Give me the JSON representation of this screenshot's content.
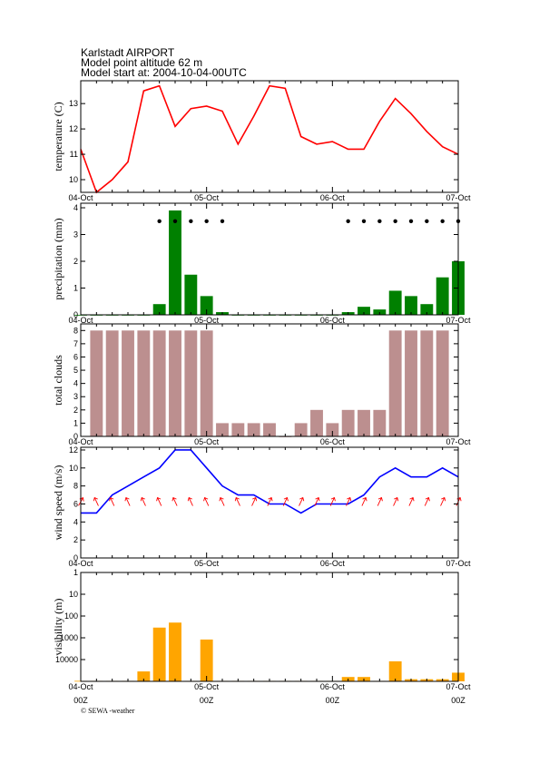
{
  "header": {
    "lines": [
      "Karlstadt AIRPORT",
      "Model point altitude  62 m",
      "Model start at: 2004-10-04-00UTC"
    ]
  },
  "chart_data": [
    {
      "type": "line",
      "ylabel": "temperature (C)",
      "categories": [
        "04-Oct",
        null,
        null,
        null,
        null,
        null,
        null,
        null,
        "05-Oct",
        null,
        null,
        null,
        null,
        null,
        null,
        null,
        "06-Oct",
        null,
        null,
        null,
        null,
        null,
        null,
        null,
        "07-Oct"
      ],
      "series": [
        {
          "color": "#ff0000",
          "values": [
            11.2,
            9.5,
            10.0,
            10.7,
            13.5,
            13.7,
            12.1,
            12.8,
            12.9,
            12.7,
            11.4,
            12.5,
            13.7,
            13.6,
            11.7,
            11.4,
            11.5,
            11.2,
            11.2,
            12.3,
            13.2,
            12.6,
            11.9,
            11.3,
            11.0
          ]
        }
      ],
      "ylim": [
        9.5,
        13.9
      ],
      "yticks": [
        10,
        11,
        12,
        13
      ]
    },
    {
      "type": "bar",
      "ylabel": "precipitation (mm)",
      "categories": [
        "04-Oct",
        null,
        null,
        null,
        null,
        null,
        null,
        null,
        "05-Oct",
        null,
        null,
        null,
        null,
        null,
        null,
        null,
        "06-Oct",
        null,
        null,
        null,
        null,
        null,
        null,
        null,
        "07-Oct"
      ],
      "series": [
        {
          "color": "#008000",
          "values": [
            0,
            0,
            0,
            0,
            0,
            0.4,
            3.9,
            1.5,
            0.7,
            0.1,
            0,
            0,
            0,
            0,
            0,
            0,
            0,
            0.1,
            0.3,
            0.2,
            0.9,
            0.7,
            0.4,
            1.4,
            2.0
          ]
        },
        {
          "type": "scatter",
          "color": "#000000",
          "values": [
            null,
            null,
            null,
            null,
            null,
            3.5,
            3.5,
            3.5,
            3.5,
            3.5,
            null,
            null,
            null,
            null,
            null,
            null,
            null,
            3.5,
            3.5,
            3.5,
            3.5,
            3.5,
            3.5,
            3.5,
            3.5
          ]
        }
      ],
      "ylim": [
        0,
        4.17
      ],
      "yticks": [
        0,
        1,
        2,
        3,
        4
      ]
    },
    {
      "type": "bar",
      "ylabel": "total clouds",
      "categories": [
        "04-Oct",
        null,
        null,
        null,
        null,
        null,
        null,
        null,
        "05-Oct",
        null,
        null,
        null,
        null,
        null,
        null,
        null,
        "06-Oct",
        null,
        null,
        null,
        null,
        null,
        null,
        null,
        "07-Oct"
      ],
      "series": [
        {
          "color": "#bc8f8f",
          "values": [
            null,
            8,
            8,
            8,
            8,
            8,
            8,
            8,
            8,
            1,
            1,
            1,
            1,
            0,
            1,
            2,
            1,
            2,
            2,
            2,
            8,
            8,
            8,
            8,
            null
          ]
        }
      ],
      "ylim": [
        0,
        8.5
      ],
      "yticks": [
        0,
        1,
        2,
        3,
        4,
        5,
        6,
        7,
        8
      ]
    },
    {
      "type": "line",
      "ylabel": "wind speed (m/s)",
      "categories": [
        "04-Oct",
        null,
        null,
        null,
        null,
        null,
        null,
        null,
        "05-Oct",
        null,
        null,
        null,
        null,
        null,
        null,
        null,
        "06-Oct",
        null,
        null,
        null,
        null,
        null,
        null,
        null,
        "07-Oct"
      ],
      "series": [
        {
          "color": "#0000ff",
          "values": [
            5,
            5,
            7,
            8,
            9,
            10,
            12,
            12,
            10,
            8,
            7,
            7,
            6,
            6,
            5,
            6,
            6,
            6,
            7,
            9,
            10,
            9,
            9,
            10,
            9
          ]
        }
      ],
      "arrow_directions": [
        30,
        335,
        335,
        335,
        335,
        335,
        335,
        335,
        335,
        335,
        335,
        25,
        25,
        25,
        25,
        25,
        25,
        25,
        25,
        25,
        25,
        25,
        25,
        25,
        25
      ],
      "arrow_color": "#ff0000",
      "ylim": [
        0,
        12.3
      ],
      "yticks": [
        0,
        2,
        4,
        6,
        8,
        10,
        12
      ]
    },
    {
      "type": "bar",
      "ylabel": "visibility (m)",
      "log": true,
      "inverted": true,
      "categories": [
        "04-Oct",
        null,
        null,
        null,
        null,
        null,
        null,
        null,
        "05-Oct",
        null,
        null,
        null,
        null,
        null,
        null,
        null,
        "06-Oct",
        null,
        null,
        null,
        null,
        null,
        null,
        null,
        "07-Oct"
      ],
      "x_sublabels": [
        "00Z",
        null,
        null,
        null,
        null,
        null,
        null,
        null,
        "00Z",
        null,
        null,
        null,
        null,
        null,
        null,
        null,
        "00Z",
        null,
        null,
        null,
        null,
        null,
        null,
        null,
        "00Z"
      ],
      "series": [
        {
          "color": "#ffa500",
          "values": [
            95000,
            95000,
            95000,
            95000,
            35000,
            340,
            200,
            95000,
            1200,
            95000,
            95000,
            95000,
            95000,
            95000,
            95000,
            95000,
            95000,
            63000,
            63000,
            95000,
            12000,
            80000,
            80000,
            80000,
            40000
          ]
        }
      ],
      "ylim": [
        1,
        100000
      ],
      "yticks": [
        1,
        10,
        100,
        1000,
        10000
      ]
    }
  ],
  "footer": "© SEWA -weather"
}
